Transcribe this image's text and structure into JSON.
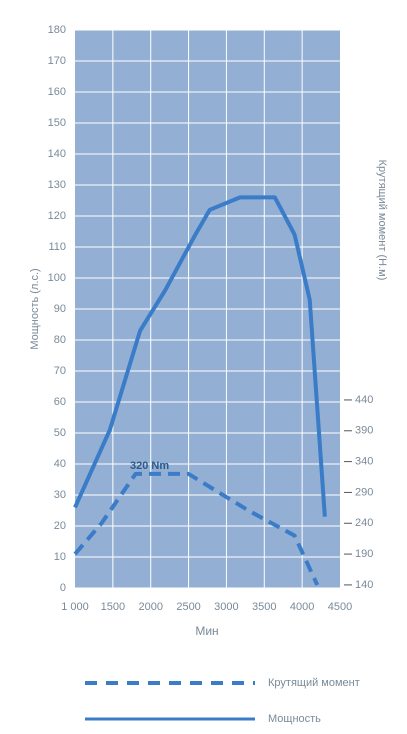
{
  "chart_data": {
    "type": "line",
    "y_label": "Мощность (л.с.)",
    "y2_label": "Крутящий момент (Н.м)",
    "x_label": "Мин",
    "annotation": "320 Nm",
    "xlim": [
      1000,
      4500
    ],
    "xticks": [
      {
        "value": 1000,
        "label": "1 000"
      },
      1500,
      2000,
      2500,
      3000,
      3500,
      4000,
      4500
    ],
    "ylim": [
      0,
      180
    ],
    "yticks": [
      0,
      10,
      20,
      30,
      40,
      50,
      60,
      70,
      80,
      90,
      100,
      110,
      120,
      130,
      140,
      150,
      160,
      170,
      180
    ],
    "y2lim": [
      135,
      1040
    ],
    "y2ticks": [
      140,
      190,
      240,
      290,
      340,
      390,
      440
    ],
    "grid": true,
    "series": [
      {
        "name": "Крутящий момент",
        "color": "#3a7cc8",
        "dash": true,
        "axis": "y2",
        "x": [
          1000,
          1350,
          1800,
          2500,
          3300,
          3900,
          4200
        ],
        "values": [
          190,
          240,
          320,
          320,
          260,
          220,
          140
        ]
      },
      {
        "name": "Мощность",
        "color": "#3a7cc8",
        "dash": false,
        "axis": "y",
        "x": [
          1000,
          1460,
          1860,
          2190,
          2590,
          2780,
          3180,
          3640,
          3900,
          4100,
          4300
        ],
        "values": [
          26,
          51,
          83,
          96,
          114,
          122,
          126,
          126,
          114,
          93,
          23
        ]
      }
    ]
  }
}
